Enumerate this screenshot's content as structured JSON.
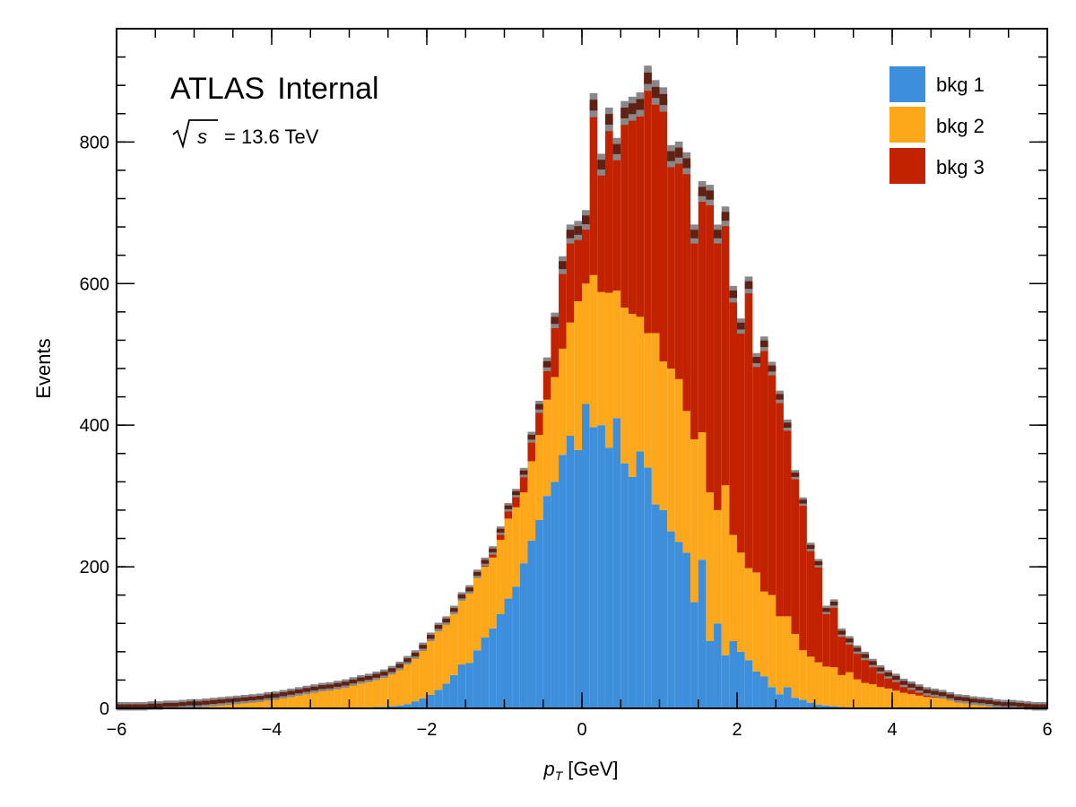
{
  "chart_data": {
    "type": "bar",
    "subtype": "stacked-histogram",
    "title": "",
    "experiment_label": "ATLAS",
    "status_label": "Internal",
    "energy_label": "= 13.6 TeV",
    "xlabel_symbol": "p",
    "xlabel_subscript": "T",
    "xlabel_unit": "[GeV]",
    "ylabel": "Events",
    "xlim": [
      -6,
      6
    ],
    "ylim": [
      0,
      960
    ],
    "xticks": [
      -6,
      -4,
      -2,
      0,
      2,
      4,
      6
    ],
    "yticks": [
      0,
      200,
      400,
      600,
      800
    ],
    "xtick_labels": [
      "−6",
      "−4",
      "−2",
      "0",
      "2",
      "4",
      "6"
    ],
    "ytick_labels": [
      "0",
      "200",
      "400",
      "600",
      "800"
    ],
    "bin_width": 0.1,
    "legend_position": "top-right",
    "colors": {
      "bkg1": "#3d8fdc",
      "bkg2": "#fca81a",
      "bkg3": "#c22200",
      "uncertainty_band": "#888888",
      "uncertainty_core": "#5a0e00"
    },
    "series": [
      {
        "name": "bkg 1",
        "color": "#3d8fdc",
        "values": [
          0,
          0,
          0,
          0,
          0,
          0,
          0,
          0,
          0,
          0,
          0,
          0,
          0,
          0,
          0,
          0,
          0,
          0,
          0,
          0,
          0,
          0,
          0,
          0,
          0,
          0,
          0,
          0,
          0,
          0,
          0,
          1,
          1,
          2,
          2,
          3,
          4,
          6,
          10,
          14,
          19,
          26,
          35,
          47,
          62,
          64,
          82,
          100,
          113,
          133,
          155,
          172,
          205,
          237,
          266,
          300,
          320,
          358,
          385,
          365,
          430,
          397,
          400,
          368,
          410,
          346,
          327,
          363,
          340,
          288,
          280,
          250,
          235,
          220,
          150,
          210,
          95,
          120,
          75,
          95,
          80,
          68,
          52,
          45,
          30,
          20,
          30,
          15,
          12,
          8,
          5,
          4,
          3,
          2,
          1,
          1,
          0,
          0,
          0,
          0,
          0,
          0,
          0,
          0,
          0,
          0,
          0,
          0,
          0,
          0,
          0,
          0,
          0,
          0,
          0,
          0,
          0,
          0,
          0,
          0
        ]
      },
      {
        "name": "bkg 2",
        "color": "#fca81a",
        "values": [
          3,
          3,
          3,
          3,
          4,
          4,
          5,
          5,
          6,
          7,
          7,
          8,
          9,
          10,
          11,
          12,
          13,
          14,
          15,
          17,
          18,
          20,
          22,
          24,
          26,
          28,
          30,
          31,
          33,
          35,
          38,
          40,
          42,
          44,
          47,
          51,
          56,
          62,
          66,
          73,
          82,
          88,
          88,
          90,
          93,
          101,
          103,
          100,
          100,
          105,
          113,
          112,
          100,
          112,
          120,
          136,
          148,
          150,
          160,
          210,
          170,
          215,
          188,
          219,
          180,
          220,
          230,
          190,
          190,
          242,
          210,
          230,
          230,
          200,
          230,
          180,
          210,
          160,
          240,
          150,
          140,
          130,
          140,
          120,
          130,
          110,
          100,
          90,
          70,
          65,
          60,
          55,
          55,
          45,
          50,
          40,
          36,
          34,
          30,
          28,
          25,
          22,
          20,
          18,
          16,
          15,
          14,
          12,
          10,
          10,
          8,
          8,
          7,
          6,
          5,
          5,
          4,
          4,
          3,
          3
        ]
      },
      {
        "name": "bkg 3",
        "color": "#c22200",
        "values": [
          0,
          0,
          0,
          0,
          0,
          0,
          0,
          0,
          0,
          0,
          0,
          0,
          0,
          0,
          0,
          0,
          0,
          0,
          0,
          0,
          0,
          0,
          0,
          0,
          0,
          0,
          0,
          0,
          0,
          0,
          0,
          0,
          0,
          0,
          0,
          0,
          0,
          0,
          0,
          0,
          0,
          1,
          1,
          2,
          3,
          3,
          5,
          7,
          10,
          13,
          16,
          20,
          28,
          34,
          40,
          50,
          80,
          118,
          125,
          100,
          90,
          240,
          180,
          245,
          200,
          275,
          290,
          300,
          360,
          340,
          370,
          300,
          320,
          350,
          290,
          340,
          420,
          390,
          380,
          340,
          320,
          400,
          300,
          350,
          320,
          310,
          270,
          225,
          210,
          155,
          140,
          80,
          90,
          60,
          45,
          42,
          38,
          30,
          25,
          20,
          18,
          14,
          12,
          10,
          8,
          7,
          6,
          5,
          4,
          3,
          3,
          2,
          2,
          1,
          1,
          1,
          1,
          0,
          0,
          0
        ]
      }
    ],
    "uncertainty": {
      "description": "hatched statistical uncertainty on the stacked total",
      "relative": 0.02
    }
  },
  "legend": {
    "items": [
      {
        "label": "bkg 1",
        "color": "#3d8fdc"
      },
      {
        "label": "bkg 2",
        "color": "#fca81a"
      },
      {
        "label": "bkg 3",
        "color": "#c22200"
      }
    ]
  }
}
